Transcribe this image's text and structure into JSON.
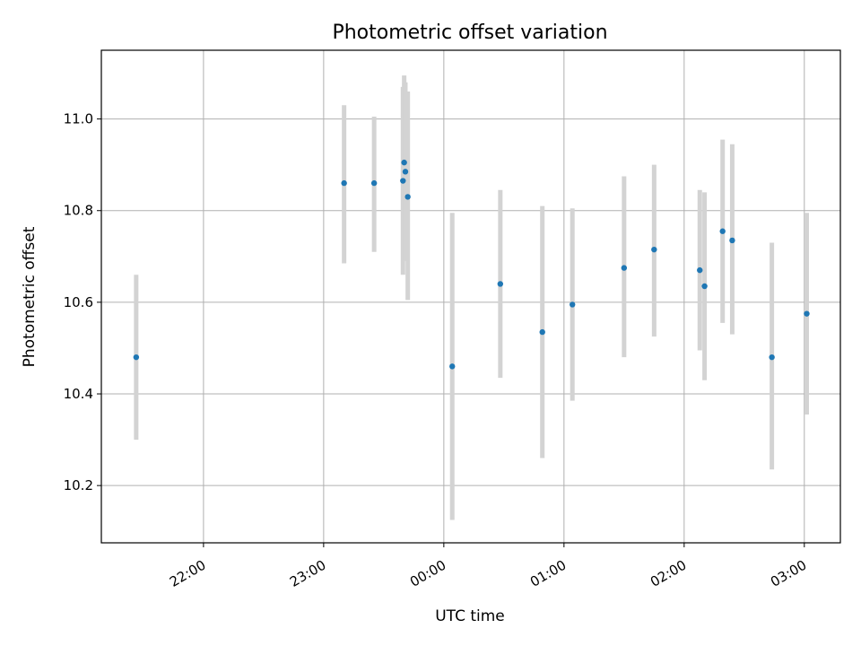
{
  "chart_data": {
    "type": "scatter",
    "title": "Photometric offset variation",
    "xlabel": "UTC time",
    "ylabel": "Photometric offset",
    "x_unit": "hours (UTC, values beyond 24 wrap past midnight)",
    "xlim": [
      21.15,
      27.3
    ],
    "ylim": [
      10.075,
      11.15
    ],
    "x_ticks": [
      {
        "value": 22,
        "label": "22:00"
      },
      {
        "value": 23,
        "label": "23:00"
      },
      {
        "value": 24,
        "label": "00:00"
      },
      {
        "value": 25,
        "label": "01:00"
      },
      {
        "value": 26,
        "label": "02:00"
      },
      {
        "value": 27,
        "label": "03:00"
      }
    ],
    "y_ticks": [
      {
        "value": 10.2,
        "label": "10.2"
      },
      {
        "value": 10.4,
        "label": "10.4"
      },
      {
        "value": 10.6,
        "label": "10.6"
      },
      {
        "value": 10.8,
        "label": "10.8"
      },
      {
        "value": 11.0,
        "label": "11.0"
      }
    ],
    "grid": true,
    "marker_color": "#1f77b4",
    "errorbar_color": "#d3d3d3",
    "points": [
      {
        "x": 21.44,
        "y": 10.48,
        "err_low": 10.3,
        "err_high": 10.66
      },
      {
        "x": 23.17,
        "y": 10.86,
        "err_low": 10.685,
        "err_high": 11.03
      },
      {
        "x": 23.42,
        "y": 10.86,
        "err_low": 10.71,
        "err_high": 11.005
      },
      {
        "x": 23.66,
        "y": 10.865,
        "err_low": 10.66,
        "err_high": 11.07
      },
      {
        "x": 23.67,
        "y": 10.905,
        "err_low": 10.7,
        "err_high": 11.095
      },
      {
        "x": 23.68,
        "y": 10.885,
        "err_low": 10.69,
        "err_high": 11.08
      },
      {
        "x": 23.7,
        "y": 10.83,
        "err_low": 10.605,
        "err_high": 11.06
      },
      {
        "x": 24.07,
        "y": 10.46,
        "err_low": 10.125,
        "err_high": 10.795
      },
      {
        "x": 24.47,
        "y": 10.64,
        "err_low": 10.435,
        "err_high": 10.845
      },
      {
        "x": 24.82,
        "y": 10.535,
        "err_low": 10.26,
        "err_high": 10.81
      },
      {
        "x": 25.07,
        "y": 10.595,
        "err_low": 10.385,
        "err_high": 10.805
      },
      {
        "x": 25.5,
        "y": 10.675,
        "err_low": 10.48,
        "err_high": 10.875
      },
      {
        "x": 25.75,
        "y": 10.715,
        "err_low": 10.525,
        "err_high": 10.9
      },
      {
        "x": 26.13,
        "y": 10.67,
        "err_low": 10.495,
        "err_high": 10.845
      },
      {
        "x": 26.17,
        "y": 10.635,
        "err_low": 10.43,
        "err_high": 10.84
      },
      {
        "x": 26.32,
        "y": 10.755,
        "err_low": 10.555,
        "err_high": 10.955
      },
      {
        "x": 26.4,
        "y": 10.735,
        "err_low": 10.53,
        "err_high": 10.945
      },
      {
        "x": 26.73,
        "y": 10.48,
        "err_low": 10.235,
        "err_high": 10.73
      },
      {
        "x": 27.02,
        "y": 10.575,
        "err_low": 10.355,
        "err_high": 10.795
      }
    ]
  }
}
